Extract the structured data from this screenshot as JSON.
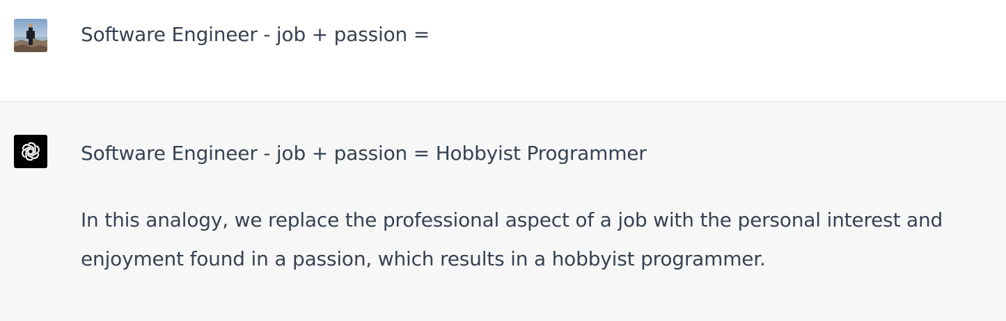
{
  "user_message": {
    "avatar_icon": "user-photo-avatar",
    "text": "Software Engineer - job + passion ="
  },
  "assistant_message": {
    "avatar_icon": "openai-logo-icon",
    "avatar_bg": "#000000",
    "paragraphs": [
      "Software Engineer - job + passion = Hobbyist Programmer",
      "In this analogy, we replace the professional aspect of a job with the personal interest and enjoyment found in a passion, which results in a hobbyist programmer."
    ]
  },
  "colors": {
    "user_bg": "#ffffff",
    "assistant_bg": "#f7f7f8",
    "text": "#374151"
  }
}
